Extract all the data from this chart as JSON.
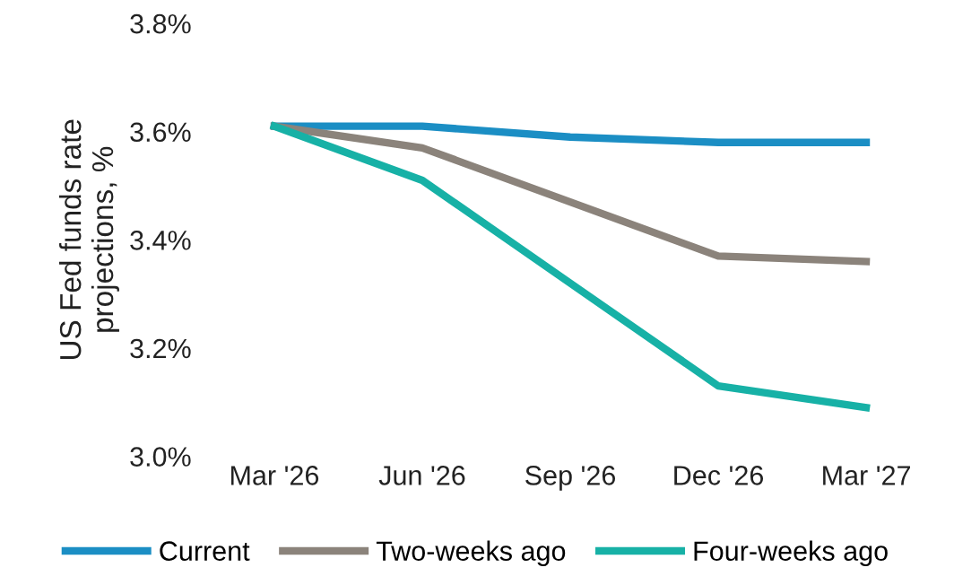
{
  "chart_data": {
    "type": "line",
    "ylabel": "US Fed funds rate\nprojections, %",
    "categories": [
      "Mar '26",
      "Jun '26",
      "Sep '26",
      "Dec '26",
      "Mar '27"
    ],
    "series": [
      {
        "name": "Current",
        "color": "#1b8ec4",
        "values": [
          3.61,
          3.61,
          3.59,
          3.58,
          3.58
        ]
      },
      {
        "name": "Two-weeks ago",
        "color": "#8b837b",
        "values": [
          3.61,
          3.57,
          3.47,
          3.37,
          3.36
        ]
      },
      {
        "name": "Four-weeks ago",
        "color": "#17b1a6",
        "values": [
          3.61,
          3.51,
          3.32,
          3.13,
          3.09
        ]
      }
    ],
    "ylim": [
      3.0,
      3.8
    ],
    "yticks": [
      {
        "value": 3.0,
        "label": "3.0%"
      },
      {
        "value": 3.2,
        "label": "3.2%"
      },
      {
        "value": 3.4,
        "label": "3.4%"
      },
      {
        "value": 3.6,
        "label": "3.6%"
      },
      {
        "value": 3.8,
        "label": "3.8%"
      }
    ],
    "grid": false,
    "legend": "bottom",
    "marker": "none",
    "line_style": "solid"
  }
}
